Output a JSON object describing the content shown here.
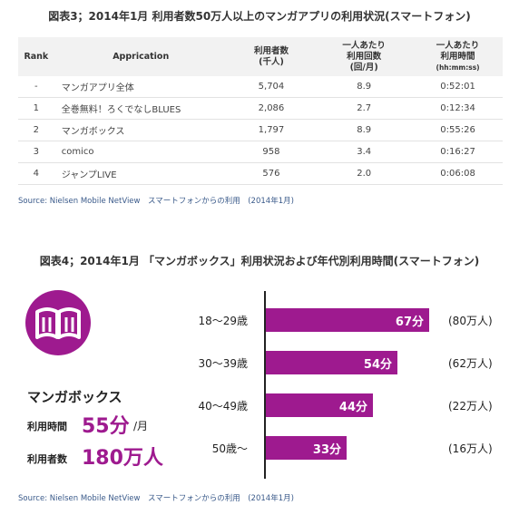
{
  "fig3": {
    "title": "図表3；2014年1月 利用者数50万人以上のマンガアプリの利用状況(スマートフォン)",
    "headers": {
      "rank": "Rank",
      "app": "Apprication",
      "users": "利用者数",
      "users_unit": "(千人)",
      "count1": "一人あたり",
      "count2": "利用回数",
      "count_unit": "(回/月)",
      "time1": "一人あたり",
      "time2": "利用時間",
      "time_unit": "(hh:mm:ss)"
    },
    "rows": [
      {
        "rank": "-",
        "app": "マンガアプリ全体",
        "users": "5,704",
        "count": "8.9",
        "time": "0:52:01"
      },
      {
        "rank": "1",
        "app": "全巻無料！ろくでなしBLUES",
        "users": "2,086",
        "count": "2.7",
        "time": "0:12:34"
      },
      {
        "rank": "2",
        "app": "マンガボックス",
        "users": "1,797",
        "count": "8.9",
        "time": "0:55:26"
      },
      {
        "rank": "3",
        "app": "comico",
        "users": "958",
        "count": "3.4",
        "time": "0:16:27"
      },
      {
        "rank": "4",
        "app": "ジャンプLIVE",
        "users": "576",
        "count": "2.0",
        "time": "0:06:08"
      }
    ],
    "source": "Source: Nielsen Mobile NetView　スマートフォンからの利用　(2014年1月)"
  },
  "fig4": {
    "title": "図表4；2014年1月 「マンガボックス」利用状況および年代別利用時間(スマートフォン)",
    "app_name": "マンガボックス",
    "time_label": "利用時間",
    "time_value": "55分",
    "time_unit": "/月",
    "users_label": "利用者数",
    "users_value": "180万人",
    "icon": "open-book-icon",
    "accent_color": "#9e1a8f",
    "source": "Source: Nielsen Mobile NetView　スマートフォンからの利用　(2014年1月)"
  },
  "chart_data": {
    "type": "bar",
    "orientation": "horizontal",
    "categories": [
      "18〜29歳",
      "30〜39歳",
      "40〜49歳",
      "50歳〜"
    ],
    "values": [
      67,
      54,
      44,
      33
    ],
    "value_labels": [
      "67分",
      "54分",
      "44分",
      "33分"
    ],
    "users": [
      "(80万人)",
      "(62万人)",
      "(22万人)",
      "(16万人)"
    ],
    "xlim": [
      0,
      67
    ]
  }
}
